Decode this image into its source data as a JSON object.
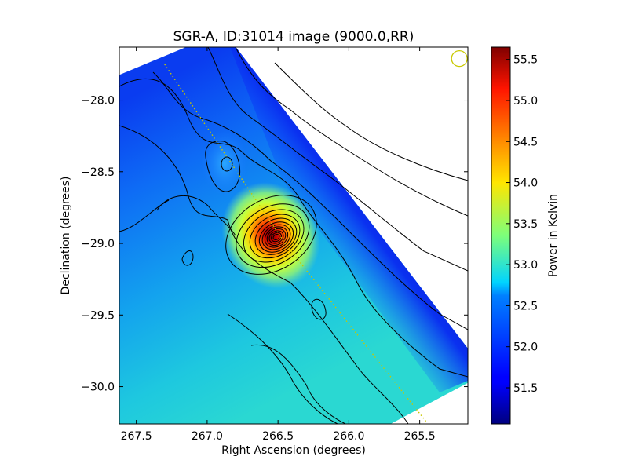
{
  "chart_data": {
    "type": "heatmap",
    "title": "SGR-A, ID:31014 image (9000.0,RR)",
    "xlabel": "Right Ascension (degrees)",
    "ylabel": "Declination (degrees)",
    "xlim": [
      267.62,
      265.16
    ],
    "ylim": [
      -30.26,
      -27.63
    ],
    "x_ticks": [
      {
        "value": 267.5,
        "label": "267.5"
      },
      {
        "value": 267.0,
        "label": "267.0"
      },
      {
        "value": 266.5,
        "label": "266.5"
      },
      {
        "value": 266.0,
        "label": "266.0"
      },
      {
        "value": 265.5,
        "label": "265.5"
      }
    ],
    "y_ticks": [
      {
        "value": -28.0,
        "label": "−28.0"
      },
      {
        "value": -28.5,
        "label": "−28.5"
      },
      {
        "value": -29.0,
        "label": "−29.0"
      },
      {
        "value": -29.5,
        "label": "−29.5"
      },
      {
        "value": -30.0,
        "label": "−30.0"
      }
    ],
    "colorbar": {
      "label": "Power in Kelvin",
      "min": 51.06,
      "max": 55.65,
      "colormap": "jet",
      "ticks": [
        {
          "value": 51.5,
          "label": "51.5"
        },
        {
          "value": 52.0,
          "label": "52.0"
        },
        {
          "value": 52.5,
          "label": "52.5"
        },
        {
          "value": 53.0,
          "label": "53.0"
        },
        {
          "value": 53.5,
          "label": "53.5"
        },
        {
          "value": 54.0,
          "label": "54.0"
        },
        {
          "value": 54.5,
          "label": "54.5"
        },
        {
          "value": 55.0,
          "label": "55.0"
        },
        {
          "value": 55.5,
          "label": "55.5"
        }
      ]
    },
    "sources": [
      {
        "ra": 266.45,
        "dec": -29.0,
        "peak": 55.6
      },
      {
        "ra": 266.85,
        "dec": -28.45,
        "peak": 52.8
      },
      {
        "ra": 266.22,
        "dec": -29.47,
        "peak": 52.5
      }
    ],
    "galactic_plane": [
      {
        "ra": 267.3,
        "dec": -27.75
      },
      {
        "ra": 266.45,
        "dec": -29.0
      },
      {
        "ra": 265.45,
        "dec": -30.25
      }
    ],
    "beam": {
      "ra": 265.22,
      "dec": -27.71
    },
    "colors": {
      "plane": "#c8c800",
      "beam": "#c8c800",
      "contour": "#000000"
    }
  }
}
